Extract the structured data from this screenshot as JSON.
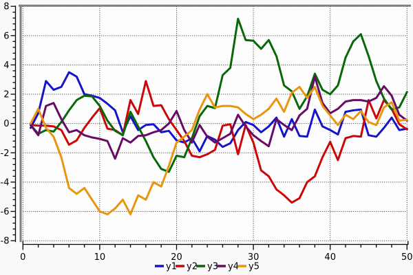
{
  "chart_data": {
    "type": "line",
    "title": "",
    "xlabel": "",
    "ylabel": "",
    "xlim": [
      0,
      50
    ],
    "ylim": [
      -8,
      8
    ],
    "grid": "dotted-black-both-axes",
    "legend_position": "bottom-center",
    "x_tick_labels": [
      "0",
      "10",
      "20",
      "30",
      "40",
      "50"
    ],
    "x_major_ticks": [
      0,
      10,
      20,
      30,
      40,
      50
    ],
    "x_minor_step": 2,
    "y_tick_labels": [
      "8",
      "6",
      "4",
      "2",
      "0",
      "-2",
      "-4",
      "-6",
      "-8"
    ],
    "y_major_ticks": [
      8,
      6,
      4,
      2,
      0,
      -2,
      -4,
      -6,
      -8
    ],
    "y_minor_step": 0.4,
    "x": [
      1,
      2,
      3,
      4,
      5,
      6,
      7,
      8,
      9,
      10,
      11,
      12,
      13,
      14,
      15,
      16,
      17,
      18,
      19,
      20,
      21,
      22,
      23,
      24,
      25,
      26,
      27,
      28,
      29,
      30,
      31,
      32,
      33,
      34,
      35,
      36,
      37,
      38,
      39,
      40,
      41,
      42,
      43,
      44,
      45,
      46,
      47,
      48,
      49,
      50
    ],
    "series": [
      {
        "name": "y1",
        "color": "#1414cc",
        "values": [
          -0.3,
          0.7,
          2.9,
          2.3,
          2.5,
          3.5,
          3.2,
          2.0,
          1.9,
          1.75,
          1.35,
          0.9,
          -0.6,
          0.5,
          -0.45,
          -0.1,
          -0.05,
          -0.6,
          -0.5,
          -1.15,
          -1.3,
          -1.0,
          -1.9,
          -0.85,
          -1.1,
          -1.6,
          -1.35,
          -0.45,
          0.1,
          -0.1,
          -0.6,
          -0.2,
          0.4,
          -0.9,
          0.3,
          -0.85,
          -0.9,
          0.95,
          -0.2,
          -0.45,
          -0.75,
          0.8,
          0.9,
          0.95,
          -0.8,
          -0.9,
          -0.3,
          0.4,
          -0.45,
          -0.35
        ]
      },
      {
        "name": "y2",
        "color": "#cc0606",
        "values": [
          -0.1,
          -0.15,
          -0.15,
          -0.2,
          -0.45,
          -1.45,
          -1.15,
          -0.3,
          0.4,
          1.05,
          -0.35,
          -0.45,
          -0.8,
          1.6,
          0.65,
          2.9,
          1.2,
          1.25,
          0.3,
          -0.45,
          -1.2,
          -2.2,
          -2.3,
          -2.1,
          -1.8,
          -0.15,
          -0.05,
          -2.1,
          -0.1,
          -1.3,
          -3.2,
          -3.6,
          -4.5,
          -4.9,
          -5.4,
          -5.1,
          -4.0,
          -3.6,
          -2.3,
          -1.25,
          -2.5,
          -1.0,
          -0.85,
          -0.9,
          1.6,
          0.35,
          1.6,
          1.0,
          -0.05,
          -0.4
        ]
      },
      {
        "name": "y3",
        "color": "#086808",
        "values": [
          -0.1,
          -0.7,
          -0.45,
          -0.55,
          0.1,
          0.9,
          1.6,
          1.9,
          1.85,
          1.2,
          0.2,
          -0.5,
          -0.8,
          0.8,
          -0.2,
          -1.2,
          -2.3,
          -3.1,
          -3.3,
          -2.2,
          -2.3,
          -1.0,
          0.5,
          1.2,
          1.05,
          3.3,
          3.8,
          7.15,
          5.7,
          5.65,
          5.1,
          5.7,
          4.6,
          2.6,
          2.2,
          1.0,
          1.85,
          3.4,
          2.3,
          2.0,
          2.6,
          4.5,
          5.6,
          6.1,
          4.6,
          2.9,
          1.7,
          0.95,
          1.1,
          2.15
        ]
      },
      {
        "name": "y4",
        "color": "#660b66",
        "values": [
          -0.1,
          -0.8,
          1.2,
          1.4,
          0.3,
          -0.6,
          -0.45,
          -0.8,
          -0.95,
          -1.05,
          -1.2,
          -2.4,
          -1.0,
          -1.3,
          -0.85,
          -0.8,
          -0.6,
          -0.45,
          0.0,
          0.85,
          -0.45,
          -1.3,
          -0.1,
          -0.9,
          -1.3,
          -1.0,
          -0.7,
          0.6,
          -0.2,
          -0.8,
          -1.2,
          -1.55,
          0.3,
          -0.1,
          -0.45,
          0.55,
          1.0,
          3.2,
          1.4,
          0.7,
          1.0,
          1.5,
          1.6,
          1.6,
          1.5,
          1.75,
          2.55,
          1.9,
          0.6,
          0.2
        ]
      },
      {
        "name": "y5",
        "color": "#e8950f",
        "values": [
          0.0,
          1.0,
          -0.3,
          -0.9,
          -2.3,
          -4.4,
          -4.8,
          -4.4,
          -5.2,
          -6.0,
          -6.2,
          -5.8,
          -5.2,
          -6.2,
          -4.9,
          -5.2,
          -4.0,
          -4.3,
          -2.9,
          -1.3,
          -0.9,
          -0.45,
          0.95,
          2.0,
          1.1,
          1.2,
          1.2,
          1.1,
          0.65,
          0.3,
          0.6,
          1.0,
          1.7,
          0.8,
          2.1,
          2.5,
          1.75,
          2.5,
          1.2,
          0.55,
          -0.1,
          0.6,
          0.3,
          0.85,
          0.1,
          -0.1,
          1.1,
          1.45,
          0.2,
          0.25
        ]
      }
    ],
    "legend": [
      "y1",
      "y2",
      "y3",
      "y4",
      "y5"
    ],
    "frame_color": "#808080",
    "grid_color": "#000000",
    "background": "#f9f9f9"
  }
}
